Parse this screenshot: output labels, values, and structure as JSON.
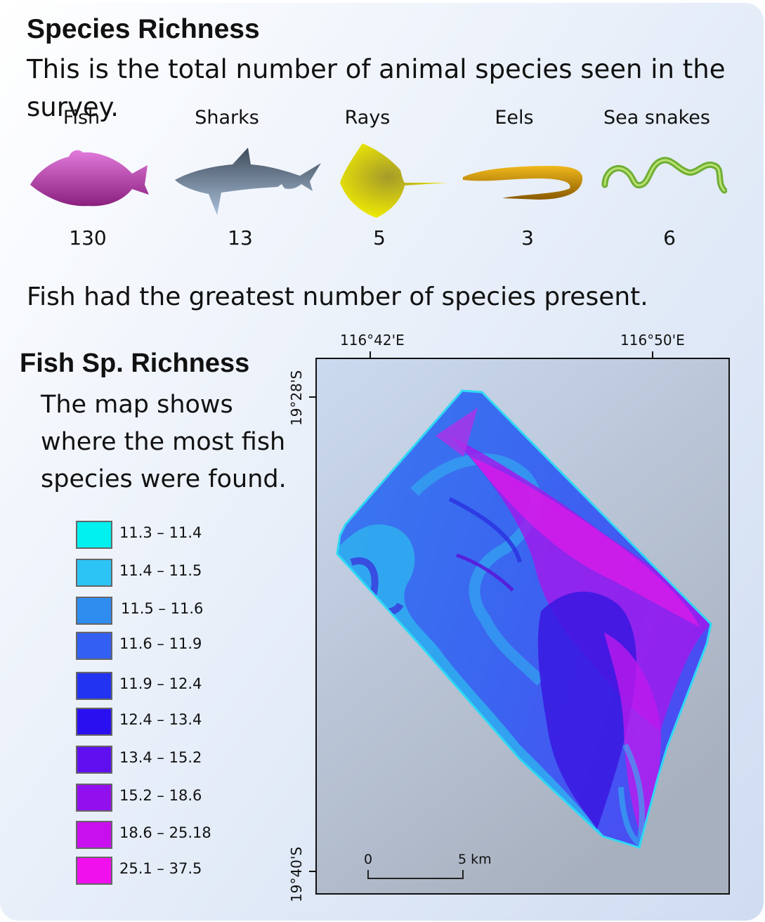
{
  "header": {
    "title": "Species Richness",
    "description": "This is the total number of animal species seen in the survey."
  },
  "groups": [
    {
      "label": "Fish",
      "count": "130",
      "icon": "fish-icon",
      "color": "#c846c0"
    },
    {
      "label": "Sharks",
      "count": "13",
      "icon": "shark-icon",
      "color": "#6a7a8c"
    },
    {
      "label": "Rays",
      "count": "5",
      "icon": "ray-icon",
      "color": "#e6e000"
    },
    {
      "label": "Eels",
      "count": "3",
      "icon": "eel-icon",
      "color": "#d49a10"
    },
    {
      "label": "Sea snakes",
      "count": "6",
      "icon": "sea-snake-icon",
      "color": "#7ab83a"
    }
  ],
  "summary": "Fish had the greatest number of species present.",
  "map": {
    "title": "Fish Sp. Richness",
    "description": "The map shows where the most fish species were found.",
    "legend": [
      {
        "label": "11.3 – 11.4",
        "color": "#00f0f0"
      },
      {
        "label": "11.4 – 11.5",
        "color": "#2cc4f4"
      },
      {
        "label": "11.5 – 11.6",
        "color": "#2f8df0"
      },
      {
        "label": "11.6 – 11.9",
        "color": "#3360f2"
      },
      {
        "label": "11.9 – 12.4",
        "color": "#2234f2"
      },
      {
        "label": "12.4 – 13.4",
        "color": "#2a10f0"
      },
      {
        "label": "13.4 – 15.2",
        "color": "#6010f0"
      },
      {
        "label": "15.2 – 18.6",
        "color": "#9210ee"
      },
      {
        "label": "18.6 – 25.18",
        "color": "#c810ee"
      },
      {
        "label": "25.1 – 37.5",
        "color": "#f010ee"
      }
    ],
    "longitude_labels": [
      "116°42'E",
      "116°50'E"
    ],
    "latitude_labels": [
      "19°28'S",
      "19°40'S"
    ],
    "scale_bar": {
      "start": "0",
      "end": "5 km"
    }
  }
}
